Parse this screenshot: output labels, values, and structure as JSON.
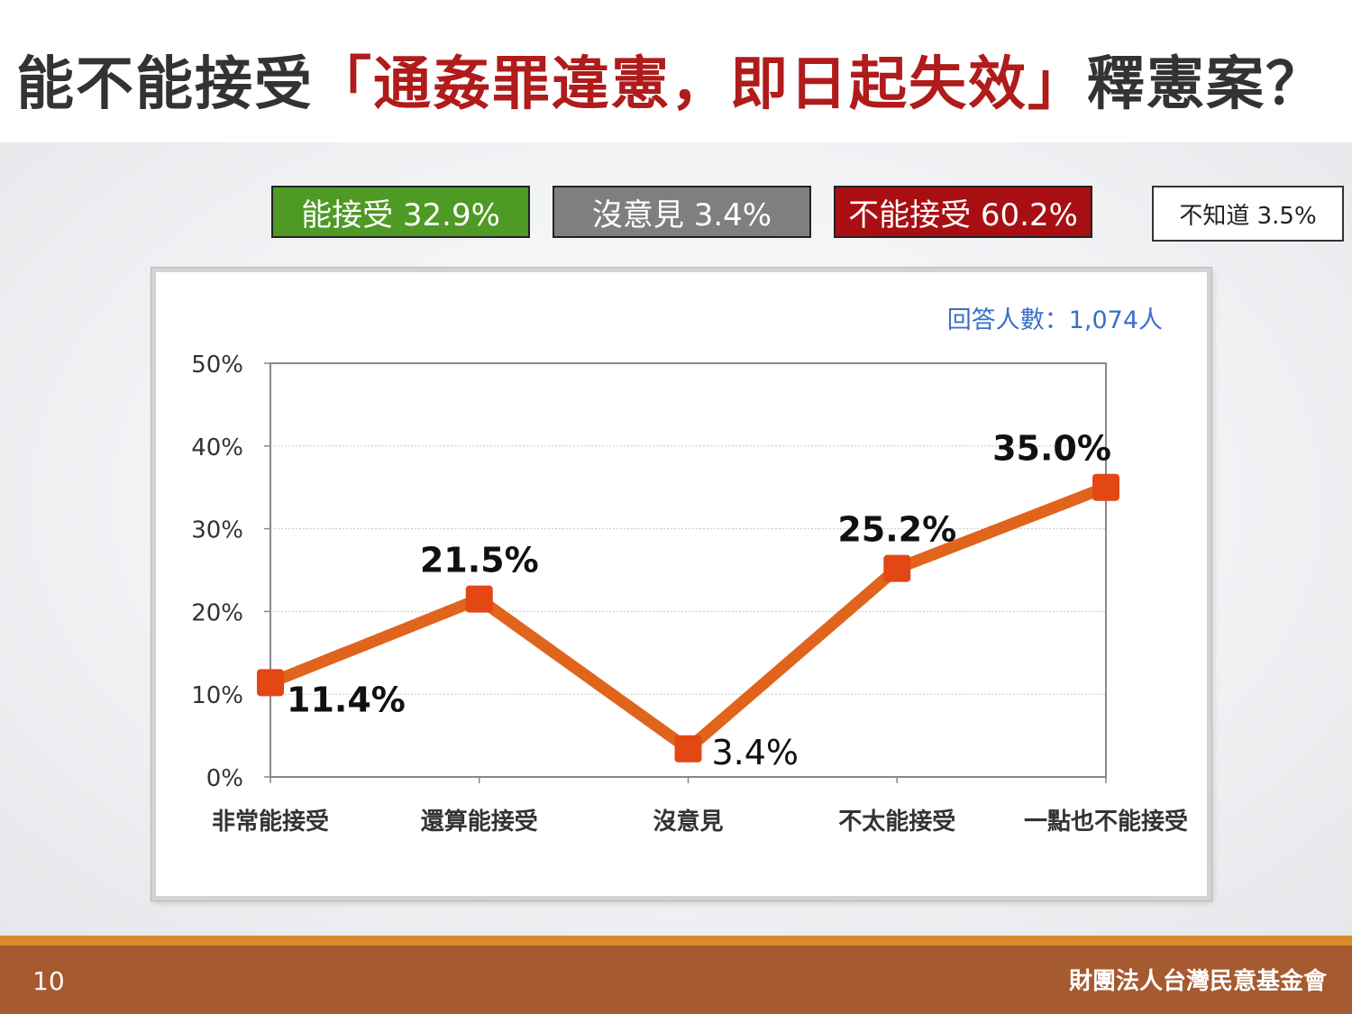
{
  "title": {
    "prefix": "能不能接受",
    "highlight": "「通姦罪違憲，即日起失效」",
    "suffix": "釋憲案？"
  },
  "legend": [
    {
      "label": "能接受 32.9%",
      "color": "#4e9a24"
    },
    {
      "label": "沒意見 3.4%",
      "color": "#7f7f7f"
    },
    {
      "label": "不能接受 60.2%",
      "color": "#a80f12"
    },
    {
      "label": "不知道 3.5%",
      "color": "#ffffff"
    }
  ],
  "chart_data": {
    "type": "line",
    "categories": [
      "非常能接受",
      "還算能接受",
      "沒意見",
      "不太能接受",
      "一點也不能接受"
    ],
    "series": [
      {
        "values": [
          11.4,
          21.5,
          3.4,
          25.2,
          35.0
        ],
        "color": "#e0641c"
      }
    ],
    "data_labels": [
      "11.4%",
      "21.5%",
      "3.4%",
      "25.2%",
      "35.0%"
    ],
    "y_ticks": [
      "0%",
      "10%",
      "20%",
      "30%",
      "40%",
      "50%"
    ],
    "ylim": [
      0,
      50
    ],
    "grid": true,
    "annotation": "回答人數：1,074人",
    "annotation_color": "#3a6fc9"
  },
  "footer": {
    "page": "10",
    "org": "財團法人台灣民意基金會"
  }
}
